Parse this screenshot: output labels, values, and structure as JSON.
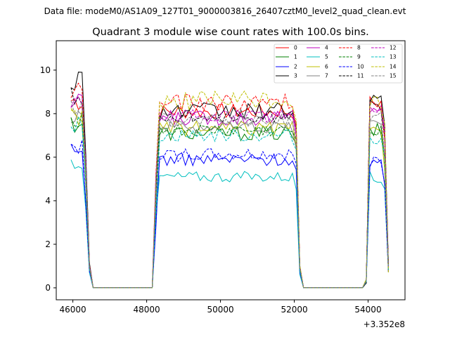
{
  "figure": {
    "suptitle": "Data file: modeM0/AS1A09_127T01_9000003816_26407cztM0_level2_quad_clean.evt",
    "title": "Quadrant 3 module wise count rates with 100.0s bins."
  },
  "chart_data": {
    "type": "line",
    "title": "Quadrant 3 module wise count rates with 100.0s bins.",
    "xlabel": "",
    "ylabel": "",
    "x_offset_text": "+3.352e8",
    "xlim": [
      45550,
      55000
    ],
    "ylim": [
      -0.55,
      11.35
    ],
    "xticks": [
      46000,
      48000,
      50000,
      52000,
      54000
    ],
    "xtick_labels": [
      "46000",
      "48000",
      "50000",
      "52000",
      "54000"
    ],
    "yticks": [
      0,
      2,
      4,
      6,
      8,
      10
    ],
    "ytick_labels": [
      "0",
      "2",
      "4",
      "6",
      "8",
      "10"
    ],
    "grid": false,
    "legend_position": "top-right",
    "x_segments": [
      [
        45950,
        46550
      ],
      [
        48150,
        52250
      ],
      [
        53950,
        54550
      ]
    ],
    "series": [
      {
        "name": "0",
        "color": "#ff0000",
        "dash": "solid",
        "level": 8.1,
        "amp": 0.35,
        "pre": 8.6,
        "post": 8.5
      },
      {
        "name": "1",
        "color": "#008000",
        "dash": "solid",
        "level": 7.1,
        "amp": 0.35,
        "pre": 7.6,
        "post": 7.2
      },
      {
        "name": "2",
        "color": "#0000ff",
        "dash": "solid",
        "level": 5.9,
        "amp": 0.3,
        "pre": 6.2,
        "post": 5.6
      },
      {
        "name": "3",
        "color": "#000000",
        "dash": "solid",
        "level": 8.1,
        "amp": 0.4,
        "pre": 9.6,
        "post": 8.7
      },
      {
        "name": "4",
        "color": "#bf00bf",
        "dash": "solid",
        "level": 7.8,
        "amp": 0.35,
        "pre": 8.4,
        "post": 8.3
      },
      {
        "name": "5",
        "color": "#00bfbf",
        "dash": "solid",
        "level": 5.1,
        "amp": 0.25,
        "pre": 5.8,
        "post": 5.1
      },
      {
        "name": "6",
        "color": "#bfbf00",
        "dash": "solid",
        "level": 7.3,
        "amp": 0.35,
        "pre": 7.9,
        "post": 7.1
      },
      {
        "name": "7",
        "color": "#808080",
        "dash": "solid",
        "level": 7.4,
        "amp": 0.3,
        "pre": 8.0,
        "post": 7.6
      },
      {
        "name": "8",
        "color": "#ff0000",
        "dash": "dashed",
        "level": 8.5,
        "amp": 0.4,
        "pre": 9.0,
        "post": 8.6
      },
      {
        "name": "9",
        "color": "#008000",
        "dash": "dashed",
        "level": 7.2,
        "amp": 0.3,
        "pre": 7.8,
        "post": 7.3
      },
      {
        "name": "10",
        "color": "#0000ff",
        "dash": "dashed",
        "level": 6.1,
        "amp": 0.3,
        "pre": 6.4,
        "post": 5.8
      },
      {
        "name": "11",
        "color": "#000000",
        "dash": "dashed",
        "level": 7.9,
        "amp": 0.3,
        "pre": 8.8,
        "post": 8.4
      },
      {
        "name": "12",
        "color": "#bf00bf",
        "dash": "dashed",
        "level": 7.9,
        "amp": 0.3,
        "pre": 8.6,
        "post": 8.2
      },
      {
        "name": "13",
        "color": "#00bfbf",
        "dash": "dashed",
        "level": 7.0,
        "amp": 0.3,
        "pre": 7.5,
        "post": 6.9
      },
      {
        "name": "14",
        "color": "#bfbf00",
        "dash": "dashed",
        "level": 8.6,
        "amp": 0.45,
        "pre": 8.0,
        "post": 8.5
      },
      {
        "name": "15",
        "color": "#808080",
        "dash": "dashed",
        "level": 7.7,
        "amp": 0.3,
        "pre": 8.3,
        "post": 7.9
      }
    ]
  }
}
